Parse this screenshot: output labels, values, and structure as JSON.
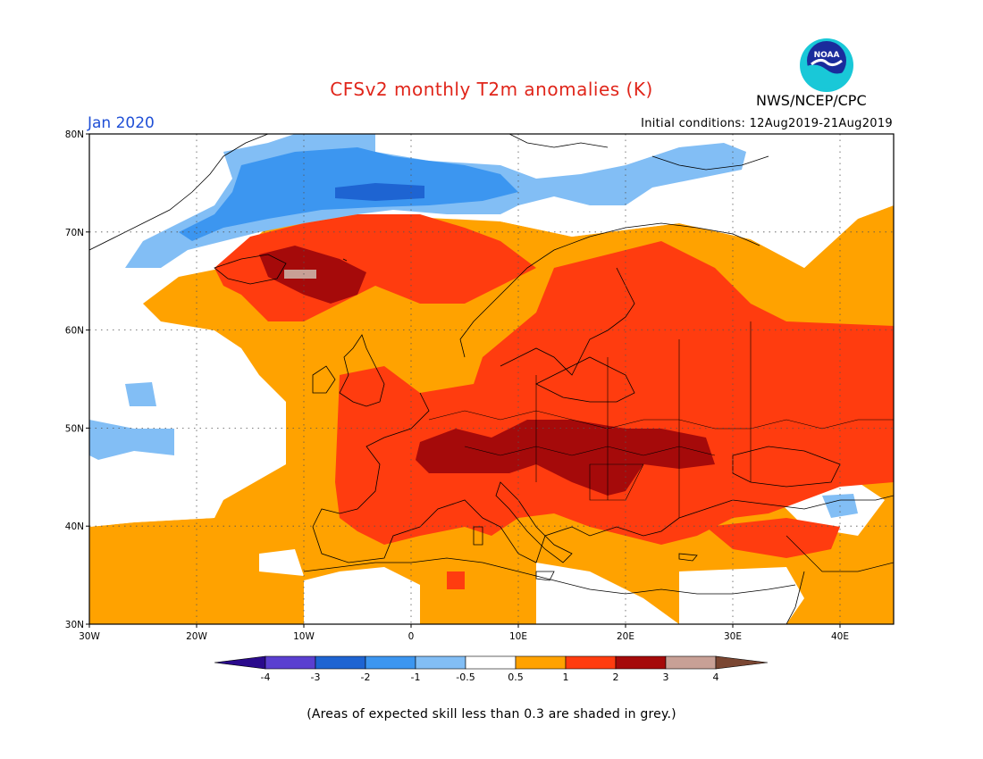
{
  "title": "CFSv2 monthly T2m anomalies (K)",
  "agency": "NWS/NCEP/CPC",
  "month_label": "Jan 2020",
  "initial_conditions": "Initial conditions: 12Aug2019-21Aug2019",
  "footnote": "(Areas of expected skill less than 0.3 are shaded in grey.)",
  "logo_text": "NOAA",
  "map": {
    "lon_range": [
      -30,
      45
    ],
    "lat_range": [
      30,
      80
    ],
    "lat_ticks": [
      "80N",
      "70N",
      "60N",
      "50N",
      "40N",
      "30N"
    ],
    "lon_ticks": [
      "30W",
      "20W",
      "10W",
      "0",
      "10E",
      "20E",
      "30E",
      "40E"
    ],
    "gridlines": "dotted"
  },
  "colorbar": {
    "labels": [
      "-4",
      "-3",
      "-2",
      "-1",
      "-0.5",
      "0.5",
      "1",
      "2",
      "3",
      "4"
    ],
    "colors": [
      "#2a0a8c",
      "#5a3fd0",
      "#1e64d2",
      "#3c96f0",
      "#82bef5",
      "#ffffff",
      "#ffa200",
      "#ff3c0f",
      "#a50a0a",
      "#c8a096",
      "#7a4632"
    ]
  },
  "colors": {
    "ocean_neutral": "#ffffff",
    "warm_05_1": "#ffa200",
    "warm_1_2": "#ff3c0f",
    "warm_2_3": "#a50a0a",
    "warm_3_4": "#c8a096",
    "cool_05_1": "#82bef5",
    "cool_1_2": "#3c96f0",
    "cool_2_3": "#1e64d2"
  }
}
